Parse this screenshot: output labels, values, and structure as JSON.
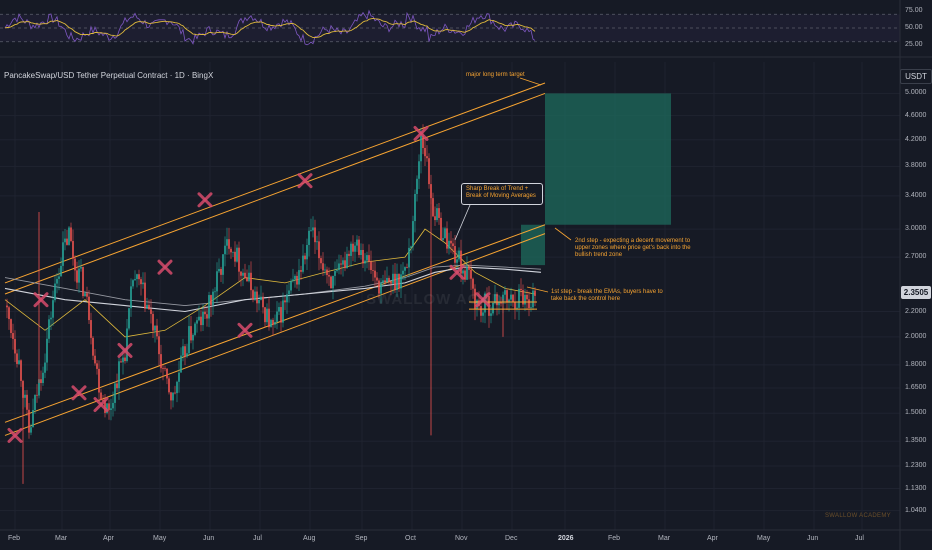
{
  "header": {
    "title": "PancakeSwap/USD Tether Perpetual Contract · 1D · BingX",
    "currency": "USDT",
    "last_price": "2.3505"
  },
  "chart_data": {
    "type": "candlestick",
    "y_axis": {
      "scale": "log",
      "ticks": [
        "5.0000",
        "4.6000",
        "4.2000",
        "3.8000",
        "3.4000",
        "3.0000",
        "2.7000",
        "2.2000",
        "2.0000",
        "1.8000",
        "1.6500",
        "1.5000",
        "1.3500",
        "1.2300",
        "1.1300",
        "1.0400"
      ],
      "ylim": [
        1.0,
        5.2
      ]
    },
    "x_axis": {
      "ticks": [
        "Feb",
        "Mar",
        "Apr",
        "May",
        "Jun",
        "Jul",
        "Aug",
        "Sep",
        "Oct",
        "Nov",
        "Dec",
        "2026",
        "Feb",
        "Mar",
        "Apr",
        "May",
        "Jun",
        "Jul"
      ],
      "bold_ticks": [
        "2026"
      ]
    },
    "rsi": {
      "ticks": [
        "75.00",
        "50.00",
        "25.00"
      ],
      "levels": [
        70,
        50,
        30
      ],
      "ylim": [
        15,
        85
      ]
    },
    "price_path": [
      [
        0,
        2.25
      ],
      [
        4,
        2.02
      ],
      [
        8,
        1.75
      ],
      [
        12,
        1.38
      ],
      [
        16,
        1.62
      ],
      [
        20,
        1.88
      ],
      [
        24,
        2.3
      ],
      [
        28,
        2.7
      ],
      [
        32,
        2.95
      ],
      [
        35,
        2.6
      ],
      [
        38,
        2.5
      ],
      [
        42,
        2.2
      ],
      [
        45,
        1.82
      ],
      [
        48,
        1.62
      ],
      [
        52,
        1.5
      ],
      [
        56,
        1.72
      ],
      [
        60,
        1.9
      ],
      [
        62,
        2.15
      ],
      [
        64,
        2.5
      ],
      [
        68,
        2.4
      ],
      [
        72,
        2.2
      ],
      [
        76,
        1.95
      ],
      [
        80,
        1.7
      ],
      [
        84,
        1.58
      ],
      [
        88,
        1.8
      ],
      [
        92,
        2.0
      ],
      [
        96,
        2.1
      ],
      [
        100,
        2.15
      ],
      [
        104,
        2.35
      ],
      [
        108,
        2.6
      ],
      [
        112,
        2.9
      ],
      [
        115,
        2.75
      ],
      [
        118,
        2.6
      ],
      [
        122,
        2.45
      ],
      [
        126,
        2.3
      ],
      [
        130,
        2.2
      ],
      [
        134,
        2.05
      ],
      [
        138,
        2.2
      ],
      [
        142,
        2.35
      ],
      [
        146,
        2.5
      ],
      [
        150,
        2.7
      ],
      [
        153,
        3.0
      ],
      [
        156,
        2.75
      ],
      [
        160,
        2.6
      ],
      [
        164,
        2.45
      ],
      [
        168,
        2.55
      ],
      [
        172,
        2.8
      ],
      [
        176,
        2.9
      ],
      [
        180,
        2.7
      ],
      [
        184,
        2.55
      ],
      [
        188,
        2.4
      ],
      [
        192,
        2.45
      ],
      [
        196,
        2.5
      ],
      [
        200,
        2.55
      ],
      [
        203,
        2.9
      ],
      [
        206,
        3.6
      ],
      [
        208,
        4.3
      ],
      [
        210,
        4.05
      ],
      [
        212,
        3.6
      ],
      [
        214,
        3.25
      ],
      [
        218,
        3.0
      ],
      [
        222,
        2.85
      ],
      [
        226,
        2.7
      ],
      [
        230,
        2.55
      ],
      [
        233,
        2.45
      ],
      [
        235,
        2.3
      ],
      [
        238,
        2.2
      ],
      [
        241,
        2.28
      ],
      [
        244,
        2.24
      ],
      [
        247,
        2.32
      ],
      [
        250,
        2.3
      ],
      [
        254,
        2.29
      ],
      [
        258,
        2.35
      ],
      [
        262,
        2.3
      ],
      [
        265,
        2.35
      ]
    ],
    "spikes": [
      {
        "day": 17,
        "high": 3.2
      },
      {
        "day": 9,
        "low": 1.15
      },
      {
        "day": 213,
        "low": 1.38
      },
      {
        "day": 249,
        "low": 2.0
      }
    ],
    "ema_fast": [
      [
        0,
        2.3
      ],
      [
        20,
        2.05
      ],
      [
        40,
        2.3
      ],
      [
        60,
        2.0
      ],
      [
        80,
        2.05
      ],
      [
        100,
        2.25
      ],
      [
        120,
        2.5
      ],
      [
        140,
        2.45
      ],
      [
        160,
        2.55
      ],
      [
        180,
        2.65
      ],
      [
        200,
        2.7
      ],
      [
        210,
        3.0
      ],
      [
        220,
        2.85
      ],
      [
        235,
        2.55
      ],
      [
        250,
        2.4
      ],
      [
        265,
        2.35
      ]
    ],
    "ema_slow": [
      [
        0,
        2.4
      ],
      [
        30,
        2.3
      ],
      [
        60,
        2.25
      ],
      [
        90,
        2.2
      ],
      [
        120,
        2.3
      ],
      [
        150,
        2.35
      ],
      [
        180,
        2.4
      ],
      [
        200,
        2.45
      ],
      [
        215,
        2.55
      ],
      [
        230,
        2.6
      ],
      [
        250,
        2.58
      ],
      [
        268,
        2.55
      ]
    ],
    "ema_mid": [
      [
        0,
        2.5
      ],
      [
        30,
        2.4
      ],
      [
        60,
        2.3
      ],
      [
        90,
        2.25
      ],
      [
        120,
        2.3
      ],
      [
        150,
        2.35
      ],
      [
        180,
        2.42
      ],
      [
        200,
        2.5
      ],
      [
        215,
        2.6
      ],
      [
        230,
        2.62
      ],
      [
        250,
        2.6
      ],
      [
        268,
        2.58
      ]
    ],
    "channel_lines": [
      {
        "points": [
          [
            0,
            2.45
          ],
          [
            270,
            5.2
          ]
        ]
      },
      {
        "points": [
          [
            0,
            2.35
          ],
          [
            270,
            5.0
          ]
        ]
      },
      {
        "points": [
          [
            0,
            1.45
          ],
          [
            270,
            3.05
          ]
        ]
      },
      {
        "points": [
          [
            0,
            1.38
          ],
          [
            270,
            2.95
          ]
        ]
      }
    ],
    "support_lines": [
      {
        "x": [
          232,
          266
        ],
        "value": 2.22
      },
      {
        "x": [
          232,
          266
        ],
        "value": 2.28
      }
    ],
    "target_zones": [
      {
        "x": [
          270,
          333
        ],
        "low": 3.05,
        "high": 5.0,
        "color": "#1e6b5c"
      },
      {
        "x": [
          258,
          270
        ],
        "low": 2.62,
        "high": 3.05,
        "color": "#1e6b5c"
      }
    ],
    "x_markers": [
      [
        5,
        1.38
      ],
      [
        18,
        2.3
      ],
      [
        37,
        1.62
      ],
      [
        48,
        1.55
      ],
      [
        60,
        1.9
      ],
      [
        80,
        2.6
      ],
      [
        100,
        3.35
      ],
      [
        120,
        2.05
      ],
      [
        150,
        3.6
      ],
      [
        208,
        4.3
      ],
      [
        226,
        2.55
      ],
      [
        239,
        2.3
      ]
    ],
    "annotations": {
      "target": "major long term target",
      "step2": "2nd step - expecting a decent movement to upper zones where price get's back into the bullish trend zone",
      "step1": "1st step - break the EMAs, buyers have to take back the control here",
      "callout": "Sharp Break of Trend + Break of Moving Averages"
    }
  },
  "watermark": "SWALLOW ACADEMY",
  "overlay_watermark": "SWALLOW ACAD",
  "colors": {
    "background": "#161a25",
    "up": "#26a69a",
    "down": "#ef5350",
    "channel": "#f7a432",
    "ema_fast": "#e0ba3c",
    "ema_slow": "#d1d4dc",
    "marker": "#d64b6b",
    "rsi_line": "#7e57c2",
    "rsi_ma": "#e0ba3c"
  }
}
